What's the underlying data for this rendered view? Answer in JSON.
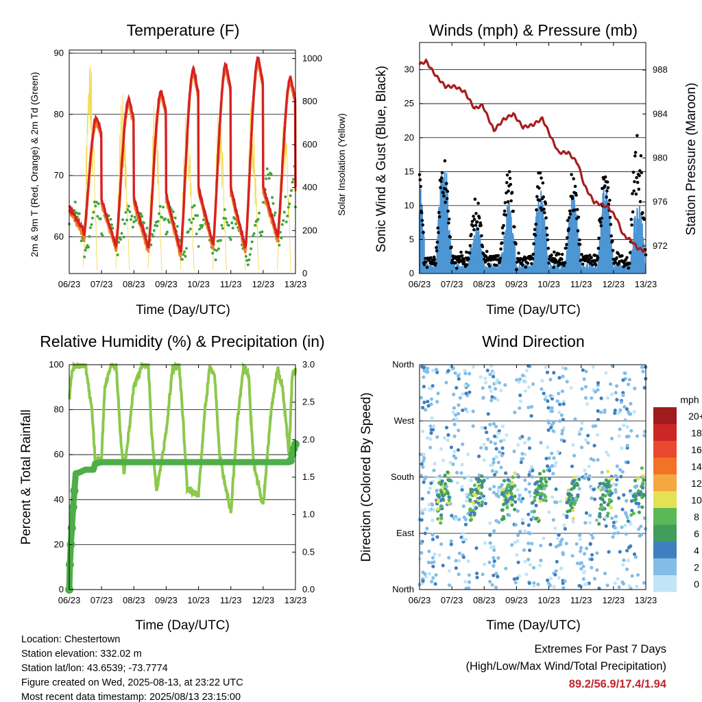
{
  "colors": {
    "temp_2m": "#d62222",
    "temp_9m": "#f07d28",
    "dewpoint": "#41a53b",
    "solar": "#f5d94a",
    "wind": "#4d96d4",
    "gust": "#000000",
    "pressure": "#a61d1d",
    "rh": "#8cc84b",
    "precip": "#4eae47",
    "extremes_value": "#c0272d"
  },
  "chart_data": [
    {
      "id": "temperature",
      "type": "line",
      "title": "Temperature (F)",
      "xlabel": "Time (Day/UTC)",
      "ylabel": "2m & 9m T (Red, Orange) & 2m Td (Green)",
      "ylabel_right": "Solar Insolation (Yellow)",
      "x_ticks": [
        "06/23",
        "07/23",
        "08/23",
        "09/23",
        "10/23",
        "11/23",
        "12/23",
        "13/23"
      ],
      "xlim": [
        0,
        7
      ],
      "ylim": [
        54,
        90.5
      ],
      "y_ticks": [
        60,
        70,
        80,
        90
      ],
      "ylim_right": [
        0,
        1040
      ],
      "y_ticks_right": [
        0,
        200,
        400,
        600,
        800,
        1000
      ],
      "grid": true,
      "daily_extremes": {
        "temp_max": [
          79.5,
          82.5,
          83.8,
          87.5,
          88.2,
          89.2,
          86
        ],
        "temp_min": [
          60,
          58.5,
          58.2,
          57.5,
          58.8,
          58.2,
          60
        ],
        "dewpoint_max": [
          65,
          64,
          64,
          64,
          63,
          63,
          71
        ],
        "dewpoint_min": [
          58,
          59,
          59,
          57,
          57,
          56,
          59
        ],
        "solar_max": [
          1000,
          840,
          830,
          820,
          810,
          810,
          760
        ]
      },
      "series": [
        {
          "name": "2m T",
          "color_key": "temp_2m"
        },
        {
          "name": "9m T",
          "color_key": "temp_9m"
        },
        {
          "name": "2m Td",
          "color_key": "dewpoint"
        },
        {
          "name": "Solar Insolation",
          "color_key": "solar"
        }
      ]
    },
    {
      "id": "winds",
      "type": "scatter",
      "title": "Winds (mph) & Pressure (mb)",
      "xlabel": "Time (Day/UTC)",
      "ylabel": "Sonic Wind & Gust (Blue, Black)",
      "ylabel_right": "Station Pressure (Maroon)",
      "x_ticks": [
        "06/23",
        "07/23",
        "08/23",
        "09/23",
        "10/23",
        "11/23",
        "12/23",
        "13/23"
      ],
      "xlim": [
        0,
        7
      ],
      "ylim": [
        0,
        34
      ],
      "y_ticks": [
        0,
        5,
        10,
        15,
        20,
        25,
        30
      ],
      "ylim_right": [
        969.5,
        990.5
      ],
      "y_ticks_right": [
        972,
        976,
        980,
        984,
        988
      ],
      "grid": true,
      "daily_extremes": {
        "gust_max": [
          17.4,
          11,
          15,
          15.5,
          14.5,
          15.5,
          21
        ],
        "wind_max": [
          17,
          7.5,
          11,
          13,
          12,
          12.5,
          11
        ]
      },
      "pressure": {
        "t": [
          0,
          0.2,
          0.5,
          0.8,
          1.1,
          1.4,
          1.7,
          1.95,
          2.3,
          2.6,
          2.9,
          3.2,
          3.5,
          3.8,
          4.05,
          4.3,
          4.6,
          4.9,
          5.1,
          5.4,
          5.6,
          5.85,
          6.1,
          6.3,
          6.55,
          6.75,
          7.0
        ],
        "p": [
          988.5,
          988.8,
          987.5,
          986.5,
          986.5,
          986.0,
          984.5,
          984.8,
          982.5,
          983.5,
          984.0,
          982.8,
          983.0,
          983.6,
          982.0,
          980.5,
          980.5,
          979.5,
          977.5,
          976.0,
          975.8,
          975.5,
          974.5,
          973.0,
          972.5,
          971.8,
          971.5
        ]
      },
      "series": [
        {
          "name": "Sonic Wind",
          "color_key": "wind"
        },
        {
          "name": "Gust",
          "color_key": "gust"
        },
        {
          "name": "Station Pressure",
          "color_key": "pressure"
        }
      ]
    },
    {
      "id": "humidity",
      "type": "line",
      "title": "Relative Humidity (%) & Precipitation (in)",
      "xlabel": "Time (Day/UTC)",
      "ylabel": "Percent & Total Rainfall",
      "x_ticks": [
        "06/23",
        "07/23",
        "08/23",
        "09/23",
        "10/23",
        "11/23",
        "12/23",
        "13/23"
      ],
      "xlim": [
        0,
        7
      ],
      "ylim": [
        0,
        100
      ],
      "y_ticks": [
        0,
        20,
        40,
        60,
        80,
        100
      ],
      "ylim_right": [
        0,
        3.0
      ],
      "y_ticks_right": [
        "0.0",
        "0.5",
        "1.0",
        "1.5",
        "2.0",
        "2.5",
        "3.0"
      ],
      "grid": true,
      "rh": {
        "t": [
          0,
          0.05,
          0.15,
          0.5,
          0.7,
          0.8,
          1.0,
          1.1,
          1.3,
          1.45,
          1.6,
          1.7,
          2.0,
          2.25,
          2.45,
          2.55,
          2.7,
          3.0,
          3.2,
          3.4,
          3.5,
          3.65,
          4.0,
          4.2,
          4.35,
          4.5,
          4.65,
          5.0,
          5.2,
          5.4,
          5.55,
          5.7,
          6.0,
          6.25,
          6.45,
          6.6,
          6.8,
          6.9,
          7.0
        ],
        "v": [
          84,
          94,
          100,
          100,
          80,
          58,
          58,
          90,
          100,
          100,
          65,
          52,
          90,
          100,
          100,
          70,
          43,
          70,
          99,
          100,
          80,
          45,
          42,
          80,
          99,
          95,
          60,
          34,
          75,
          100,
          95,
          57,
          37,
          80,
          98,
          90,
          60,
          95,
          97
        ]
      },
      "precip": {
        "t": [
          0,
          0.02,
          0.05,
          0.08,
          0.12,
          0.16,
          0.2,
          0.3,
          0.5,
          0.75,
          0.8,
          1.0,
          6.8,
          6.85,
          6.9,
          6.95,
          7.0
        ],
        "v": [
          0.0,
          0.33,
          0.6,
          0.82,
          1.1,
          1.32,
          1.55,
          1.56,
          1.6,
          1.6,
          1.68,
          1.7,
          1.7,
          1.72,
          1.8,
          1.88,
          1.94
        ]
      },
      "series": [
        {
          "name": "Relative Humidity",
          "color_key": "rh"
        },
        {
          "name": "Total Precipitation",
          "color_key": "precip"
        }
      ]
    },
    {
      "id": "wind_direction",
      "type": "scatter",
      "title": "Wind Direction",
      "xlabel": "Time (Day/UTC)",
      "ylabel": "Direction (Colored By Speed)",
      "x_ticks": [
        "06/23",
        "07/23",
        "08/23",
        "09/23",
        "10/23",
        "11/23",
        "12/23",
        "13/23"
      ],
      "xlim": [
        0,
        7
      ],
      "ylim": [
        0,
        360
      ],
      "y_tick_values": [
        0,
        90,
        180,
        270,
        360
      ],
      "y_tick_labels": [
        "North",
        "East",
        "South",
        "West",
        "North"
      ],
      "grid": true,
      "legend": {
        "title": "mph",
        "placement": "right",
        "labels": [
          "20+",
          "18",
          "16",
          "14",
          "12",
          "10",
          "8",
          "6",
          "4",
          "2",
          "0"
        ],
        "colors": [
          "#a01c1c",
          "#cc2626",
          "#e8482e",
          "#f07328",
          "#f6a840",
          "#e4e154",
          "#5bb856",
          "#3f9e5a",
          "#3f7fbf",
          "#83bde6",
          "#bfe5f7"
        ]
      }
    }
  ],
  "info": {
    "location": "Location: Chestertown",
    "elevation": "Station elevation: 332.02 m",
    "latlon": "Station lat/lon: 43.6539; -73.7774",
    "created": "Figure created on Wed, 2025-08-13, at 23:22 UTC",
    "latest": "Most recent data timestamp: 2025/08/13 23:15:00"
  },
  "extremes": {
    "title": "Extremes For Past 7 Days",
    "subtitle": "(High/Low/Max Wind/Total Precipitation)",
    "values": "89.2/56.9/17.4/1.94"
  }
}
